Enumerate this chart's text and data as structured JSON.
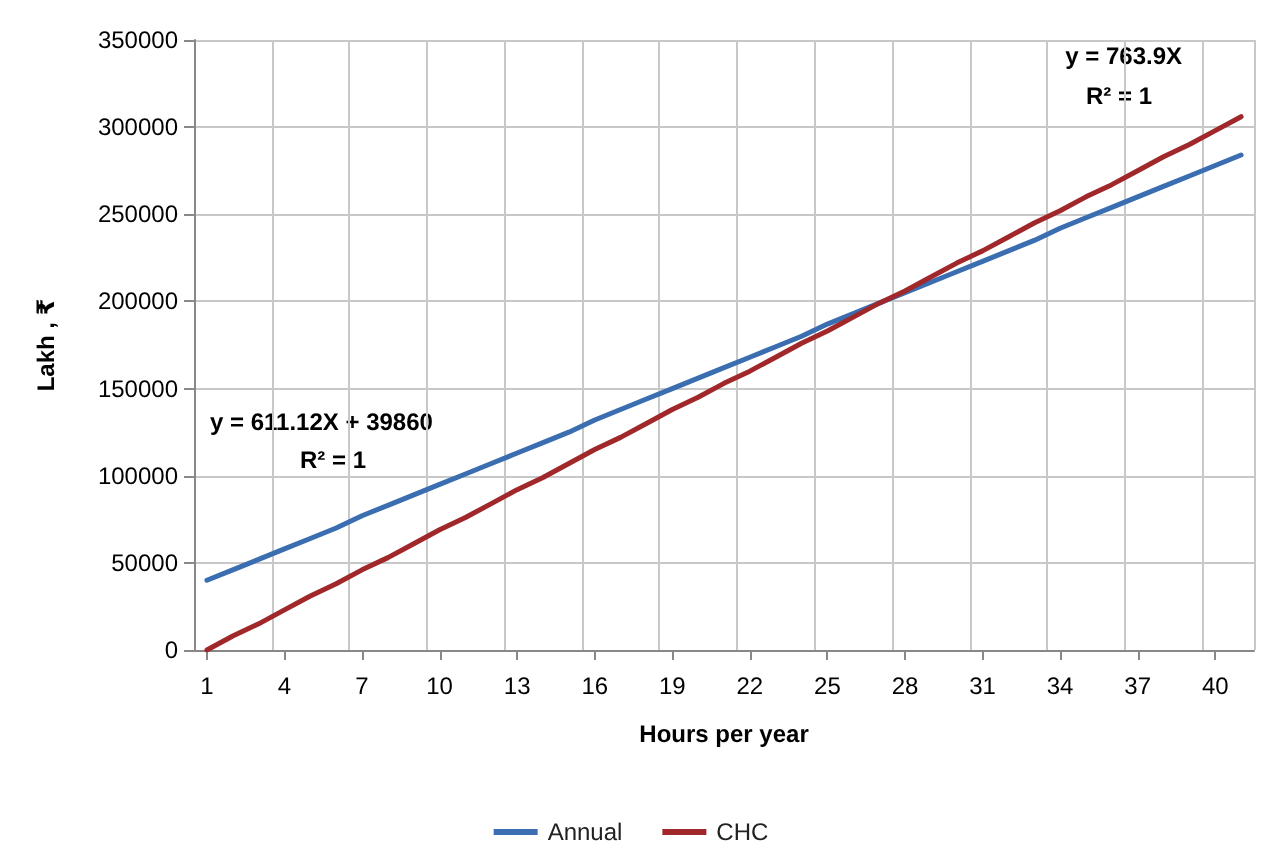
{
  "chart_data": {
    "type": "line",
    "xlabel": "Hours per year",
    "ylabel": "Lakh , ₹",
    "categories": [
      "1",
      null,
      null,
      "4",
      null,
      null,
      "7",
      null,
      null,
      "10",
      null,
      null,
      "13",
      null,
      null,
      "16",
      null,
      null,
      "19",
      null,
      null,
      "22",
      null,
      null,
      "25",
      null,
      null,
      "28",
      null,
      null,
      "31",
      null,
      null,
      "34",
      null,
      null,
      "37",
      null,
      null,
      "40",
      null
    ],
    "series": [
      {
        "name": "Annual",
        "color": "#3a6eb0",
        "values": [
          40000,
          46000,
          52000,
          58000,
          64000,
          70000,
          77000,
          83000,
          89000,
          95000,
          101000,
          107000,
          113000,
          119000,
          125000,
          132000,
          138000,
          144000,
          150000,
          156000,
          162000,
          168000,
          174000,
          180000,
          187000,
          193000,
          199000,
          205000,
          211000,
          217000,
          223000,
          229000,
          235000,
          242000,
          248000,
          254000,
          260000,
          266000,
          272000,
          278000,
          284000
        ]
      },
      {
        "name": "CHC",
        "color": "#a0282a",
        "values": [
          0,
          8000,
          15000,
          23000,
          31000,
          38000,
          46000,
          53000,
          61000,
          69000,
          76000,
          84000,
          92000,
          99000,
          107000,
          115000,
          122000,
          130000,
          138000,
          145000,
          153000,
          160000,
          168000,
          176000,
          183000,
          191000,
          199000,
          206000,
          214000,
          222000,
          229000,
          237000,
          245000,
          252000,
          260000,
          267000,
          275000,
          283000,
          290000,
          298000,
          306000
        ]
      }
    ],
    "ylim": [
      0,
      350000
    ],
    "yticks": [
      0,
      50000,
      100000,
      150000,
      200000,
      250000,
      300000,
      350000
    ],
    "grid": true,
    "legend": "bottom",
    "marker": "none",
    "line_style": "solid",
    "annotations": [
      "y = 763.9X",
      "R² = 1",
      "y = 611.12X + 39860",
      "R² = 1"
    ]
  }
}
